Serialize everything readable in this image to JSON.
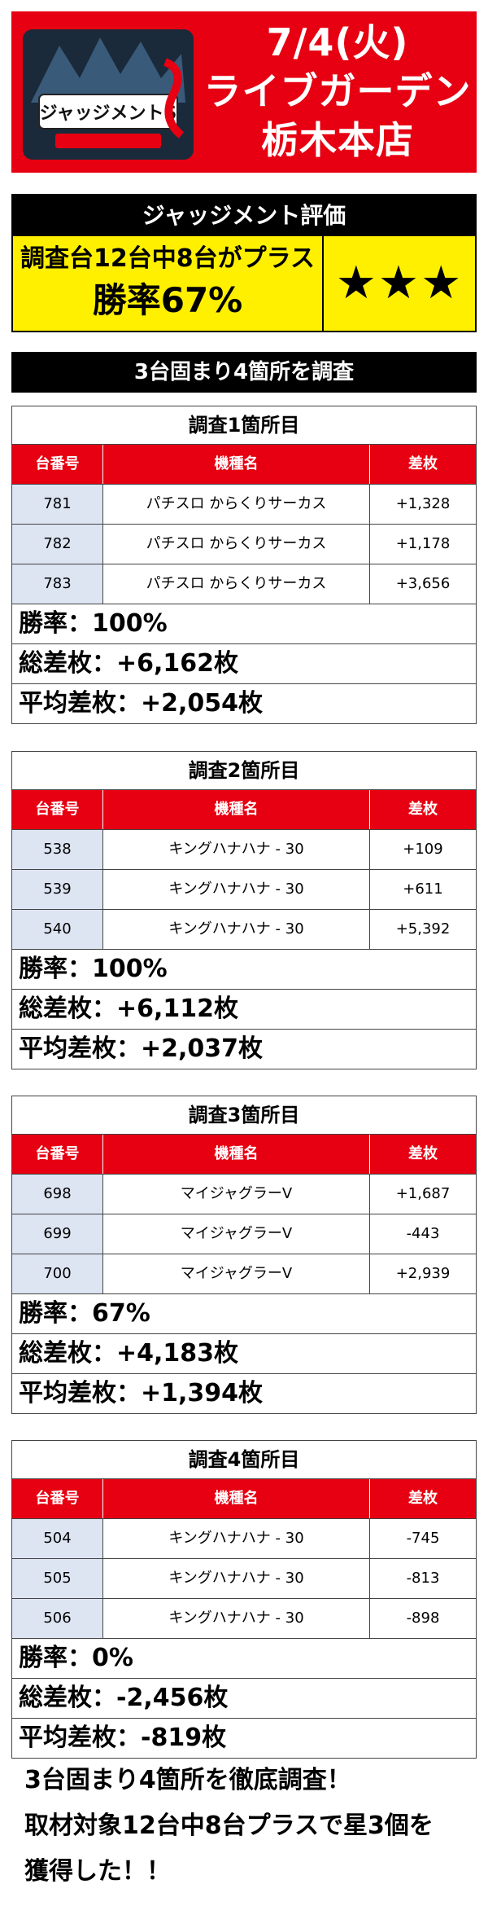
{
  "header": {
    "logo_text": "ジャッジメントS",
    "date": "7/4(火)",
    "store_line1": "ライブガーデン",
    "store_line2": "栃木本店"
  },
  "evaluation": {
    "title": "ジャッジメント評価",
    "line1": "調査台12台中8台がプラス",
    "line2": "勝率67%",
    "stars": "★★★"
  },
  "subtitle": "3台固まり4箇所を調査",
  "columns": [
    "台番号",
    "機種名",
    "差枚"
  ],
  "locations": [
    {
      "title": "調査1箇所目",
      "rows": [
        {
          "no": "781",
          "model": "パチスロ からくりサーカス",
          "diff": "+1,328"
        },
        {
          "no": "782",
          "model": "パチスロ からくりサーカス",
          "diff": "+1,178"
        },
        {
          "no": "783",
          "model": "パチスロ からくりサーカス",
          "diff": "+3,656"
        }
      ],
      "win_rate": "勝率：100%",
      "total": "総差枚：+6,162枚",
      "average": "平均差枚：+2,054枚"
    },
    {
      "title": "調査2箇所目",
      "rows": [
        {
          "no": "538",
          "model": "キングハナハナ - 30",
          "diff": "+109"
        },
        {
          "no": "539",
          "model": "キングハナハナ - 30",
          "diff": "+611"
        },
        {
          "no": "540",
          "model": "キングハナハナ - 30",
          "diff": "+5,392"
        }
      ],
      "win_rate": "勝率：100%",
      "total": "総差枚：+6,112枚",
      "average": "平均差枚：+2,037枚"
    },
    {
      "title": "調査3箇所目",
      "rows": [
        {
          "no": "698",
          "model": "マイジャグラーV",
          "diff": "+1,687"
        },
        {
          "no": "699",
          "model": "マイジャグラーV",
          "diff": "-443"
        },
        {
          "no": "700",
          "model": "マイジャグラーV",
          "diff": "+2,939"
        }
      ],
      "win_rate": "勝率：67%",
      "total": "総差枚：+4,183枚",
      "average": "平均差枚：+1,394枚"
    },
    {
      "title": "調査4箇所目",
      "rows": [
        {
          "no": "504",
          "model": "キングハナハナ - 30",
          "diff": "-745"
        },
        {
          "no": "505",
          "model": "キングハナハナ - 30",
          "diff": "-813"
        },
        {
          "no": "506",
          "model": "キングハナハナ - 30",
          "diff": "-898"
        }
      ],
      "win_rate": "勝率：0%",
      "total": "総差枚：-2,456枚",
      "average": "平均差枚：-819枚"
    }
  ],
  "footer": {
    "line1": "3台固まり4箇所を徹底調査！",
    "line2": "取材対象12台中8台プラスで星3個を",
    "line3": "獲得した！！"
  }
}
